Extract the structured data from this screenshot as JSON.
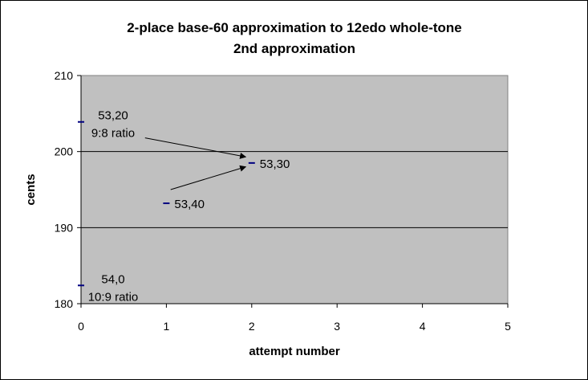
{
  "chart_data": {
    "type": "scatter",
    "title": "2-place base-60 approximation to 12edo whole-tone",
    "subtitle": "2nd approximation",
    "xlabel": "attempt number",
    "ylabel": "cents",
    "xlim": [
      0,
      5
    ],
    "ylim": [
      180,
      210
    ],
    "x_ticks": [
      "0",
      "1",
      "2",
      "3",
      "4",
      "5"
    ],
    "y_ticks": [
      "180",
      "190",
      "200",
      "210"
    ],
    "grid": "horizontal",
    "plot_background": "#c0c0c0",
    "marker_color": "#000080",
    "points": [
      {
        "x": 0,
        "y": 203.9,
        "label": "53,20",
        "sublabel": "9:8 ratio"
      },
      {
        "x": 0,
        "y": 182.4,
        "label": "54,0",
        "sublabel": "10:9 ratio"
      },
      {
        "x": 1,
        "y": 193.2,
        "label": "53,40",
        "sublabel": ""
      },
      {
        "x": 2,
        "y": 198.5,
        "label": "53,30",
        "sublabel": ""
      }
    ],
    "arrows": [
      {
        "from": [
          0.75,
          201.8
        ],
        "to": [
          1.93,
          199.3
        ]
      },
      {
        "from": [
          1.05,
          195.0
        ],
        "to": [
          1.93,
          198.0
        ]
      }
    ]
  }
}
